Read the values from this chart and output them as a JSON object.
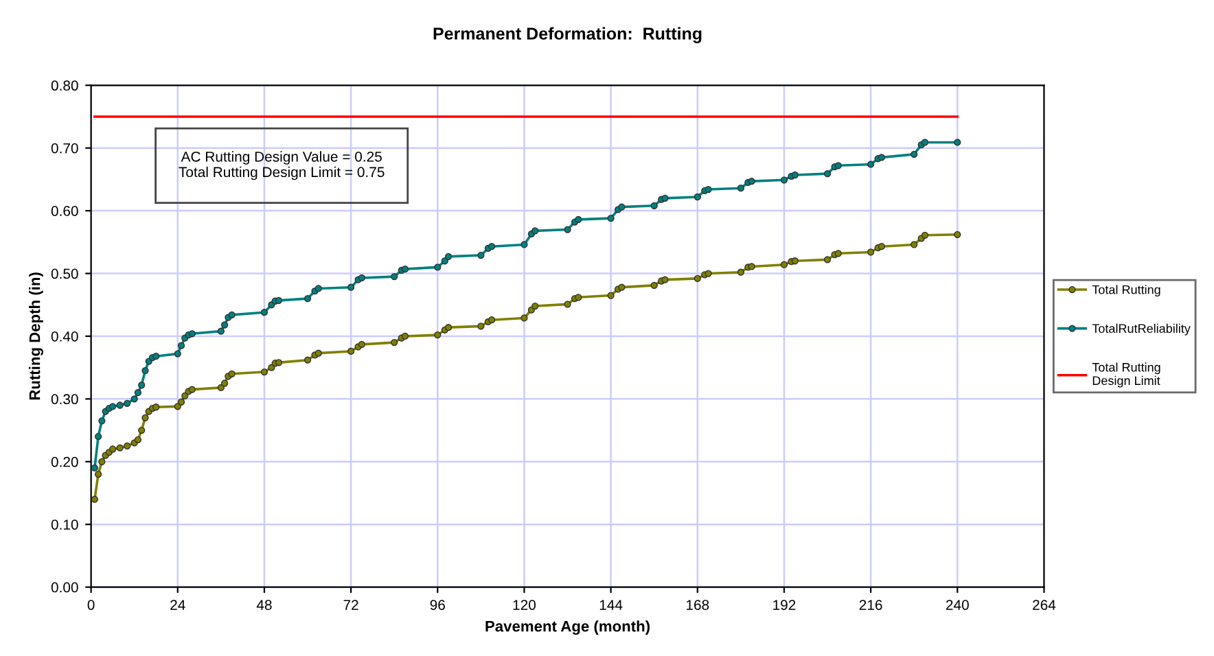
{
  "chart_data": {
    "type": "line",
    "title": "Permanent Deformation:  Rutting",
    "xlabel": "Pavement Age (month)",
    "ylabel": "Rutting Depth (in)",
    "xlim": [
      0,
      264
    ],
    "xticks": [
      0,
      24,
      48,
      72,
      96,
      120,
      144,
      168,
      192,
      216,
      240,
      264
    ],
    "ylim": [
      0,
      0.8
    ],
    "yticks": [
      {
        "value": 0,
        "label": "0.00"
      },
      {
        "value": 0.1,
        "label": "0.10"
      },
      {
        "value": 0.2,
        "label": "0.20"
      },
      {
        "value": 0.3,
        "label": "0.30"
      },
      {
        "value": 0.4,
        "label": "0.40"
      },
      {
        "value": 0.5,
        "label": "0.50"
      },
      {
        "value": 0.6,
        "label": "0.60"
      },
      {
        "value": 0.7,
        "label": "0.70"
      },
      {
        "value": 0.8,
        "label": "0.80"
      }
    ],
    "grid": true,
    "legend": "right",
    "marker": "circle",
    "line_style": "solid",
    "annotations": [
      "AC Rutting Design Value = 0.25\nTotal Rutting Design Limit = 0.75"
    ],
    "series": [
      {
        "name": "Total Rutting",
        "color": "#808000",
        "x": [
          1,
          2,
          3,
          4,
          5,
          6,
          8,
          10,
          12,
          13,
          14,
          15,
          16,
          17,
          18,
          24,
          25,
          26,
          27,
          28,
          36,
          37,
          38,
          39,
          48,
          50,
          51,
          52,
          60,
          62,
          63,
          72,
          74,
          75,
          84,
          86,
          87,
          96,
          98,
          99,
          108,
          110,
          111,
          120,
          122,
          123,
          132,
          134,
          135,
          144,
          146,
          147,
          156,
          158,
          159,
          168,
          170,
          171,
          180,
          182,
          183,
          192,
          194,
          195,
          204,
          206,
          207,
          216,
          218,
          219,
          228,
          230,
          231,
          240
        ],
        "values": [
          0.14,
          0.18,
          0.2,
          0.21,
          0.215,
          0.22,
          0.222,
          0.225,
          0.23,
          0.235,
          0.25,
          0.27,
          0.28,
          0.285,
          0.287,
          0.288,
          0.295,
          0.305,
          0.312,
          0.315,
          0.318,
          0.325,
          0.336,
          0.34,
          0.343,
          0.35,
          0.357,
          0.358,
          0.362,
          0.37,
          0.373,
          0.376,
          0.383,
          0.387,
          0.39,
          0.397,
          0.4,
          0.402,
          0.41,
          0.414,
          0.416,
          0.423,
          0.426,
          0.429,
          0.442,
          0.448,
          0.451,
          0.46,
          0.462,
          0.465,
          0.475,
          0.478,
          0.481,
          0.488,
          0.49,
          0.492,
          0.498,
          0.5,
          0.502,
          0.51,
          0.511,
          0.514,
          0.519,
          0.52,
          0.522,
          0.53,
          0.532,
          0.534,
          0.541,
          0.543,
          0.546,
          0.556,
          0.561,
          0.562
        ]
      },
      {
        "name": "TotalRutReliability",
        "color": "#008080",
        "x": [
          1,
          2,
          3,
          4,
          5,
          6,
          8,
          10,
          12,
          13,
          14,
          15,
          16,
          17,
          18,
          24,
          25,
          26,
          27,
          28,
          36,
          37,
          38,
          39,
          48,
          50,
          51,
          52,
          60,
          62,
          63,
          72,
          74,
          75,
          84,
          86,
          87,
          96,
          98,
          99,
          108,
          110,
          111,
          120,
          122,
          123,
          132,
          134,
          135,
          144,
          146,
          147,
          156,
          158,
          159,
          168,
          170,
          171,
          180,
          182,
          183,
          192,
          194,
          195,
          204,
          206,
          207,
          216,
          218,
          219,
          228,
          230,
          231,
          240
        ],
        "values": [
          0.19,
          0.24,
          0.265,
          0.28,
          0.285,
          0.288,
          0.29,
          0.293,
          0.3,
          0.31,
          0.322,
          0.345,
          0.36,
          0.366,
          0.368,
          0.372,
          0.385,
          0.397,
          0.402,
          0.404,
          0.408,
          0.418,
          0.43,
          0.434,
          0.438,
          0.45,
          0.456,
          0.457,
          0.46,
          0.472,
          0.476,
          0.478,
          0.49,
          0.493,
          0.495,
          0.505,
          0.507,
          0.51,
          0.52,
          0.527,
          0.529,
          0.54,
          0.543,
          0.546,
          0.563,
          0.568,
          0.57,
          0.582,
          0.586,
          0.588,
          0.602,
          0.606,
          0.608,
          0.618,
          0.62,
          0.622,
          0.632,
          0.634,
          0.636,
          0.645,
          0.647,
          0.649,
          0.655,
          0.657,
          0.659,
          0.67,
          0.672,
          0.674,
          0.683,
          0.685,
          0.69,
          0.705,
          0.709,
          0.709
        ]
      },
      {
        "name": "Total Rutting Design Limit",
        "color": "#ff0000",
        "marker": "none",
        "x": [
          1,
          240
        ],
        "values": [
          0.75,
          0.75
        ]
      }
    ]
  }
}
